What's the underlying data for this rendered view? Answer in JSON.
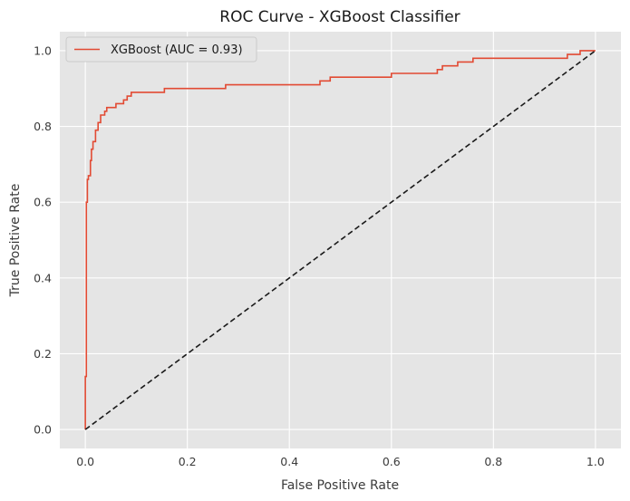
{
  "chart_data": {
    "type": "line",
    "title": "ROC Curve - XGBoost Classifier",
    "xlabel": "False Positive Rate",
    "ylabel": "True Positive Rate",
    "xlim": [
      -0.05,
      1.05
    ],
    "ylim": [
      -0.05,
      1.05
    ],
    "x_ticks": [
      0.0,
      0.2,
      0.4,
      0.6,
      0.8,
      1.0
    ],
    "y_ticks": [
      0.0,
      0.2,
      0.4,
      0.6,
      0.8,
      1.0
    ],
    "x_tick_labels": [
      "0.0",
      "0.2",
      "0.4",
      "0.6",
      "0.8",
      "1.0"
    ],
    "y_tick_labels": [
      "0.0",
      "0.2",
      "0.4",
      "0.6",
      "0.8",
      "1.0"
    ],
    "grid": true,
    "legend_position": "upper-left",
    "background_color": "#e5e5e5",
    "series": [
      {
        "name": "XGBoost (AUC = 0.93)",
        "color": "#e24a33",
        "line_style": "solid",
        "x": [
          0.0,
          0.0,
          0.002,
          0.002,
          0.004,
          0.004,
          0.006,
          0.006,
          0.01,
          0.01,
          0.012,
          0.012,
          0.015,
          0.015,
          0.02,
          0.02,
          0.025,
          0.025,
          0.03,
          0.03,
          0.038,
          0.038,
          0.042,
          0.042,
          0.06,
          0.06,
          0.075,
          0.075,
          0.082,
          0.082,
          0.09,
          0.09,
          0.155,
          0.155,
          0.275,
          0.275,
          0.46,
          0.46,
          0.48,
          0.48,
          0.6,
          0.6,
          0.69,
          0.69,
          0.7,
          0.7,
          0.72,
          0.72,
          0.73,
          0.73,
          0.76,
          0.76,
          0.945,
          0.945,
          0.97,
          0.97,
          1.0
        ],
        "y": [
          0.0,
          0.14,
          0.14,
          0.6,
          0.6,
          0.66,
          0.66,
          0.67,
          0.67,
          0.71,
          0.71,
          0.74,
          0.74,
          0.76,
          0.76,
          0.79,
          0.79,
          0.81,
          0.81,
          0.83,
          0.83,
          0.84,
          0.84,
          0.85,
          0.85,
          0.86,
          0.86,
          0.87,
          0.87,
          0.88,
          0.88,
          0.89,
          0.89,
          0.9,
          0.9,
          0.91,
          0.91,
          0.92,
          0.92,
          0.93,
          0.93,
          0.94,
          0.94,
          0.95,
          0.95,
          0.96,
          0.96,
          0.96,
          0.96,
          0.97,
          0.97,
          0.98,
          0.98,
          0.99,
          0.99,
          1.0,
          1.0
        ]
      },
      {
        "name": "",
        "color": "#1a1a1a",
        "line_style": "dashed",
        "x": [
          0.0,
          1.0
        ],
        "y": [
          0.0,
          1.0
        ]
      }
    ]
  }
}
